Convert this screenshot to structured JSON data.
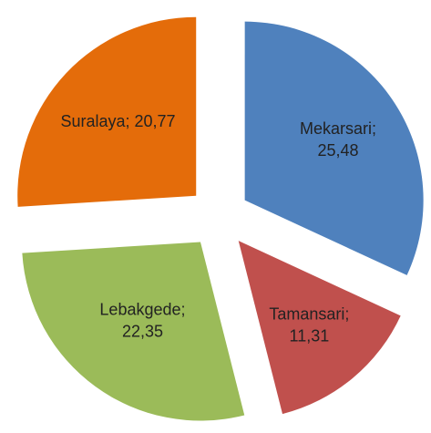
{
  "chart_data": {
    "type": "pie",
    "values": [
      25.48,
      11.31,
      22.35,
      20.77
    ],
    "value_labels": [
      "Mekarsari; 25,48",
      "Tamansari; 11,31",
      "Lebakgede; 22,35",
      "Suralaya; 20,77"
    ],
    "colors": [
      "#4f81bd",
      "#c0504d",
      "#9bbb59",
      "#e46c0a"
    ]
  }
}
